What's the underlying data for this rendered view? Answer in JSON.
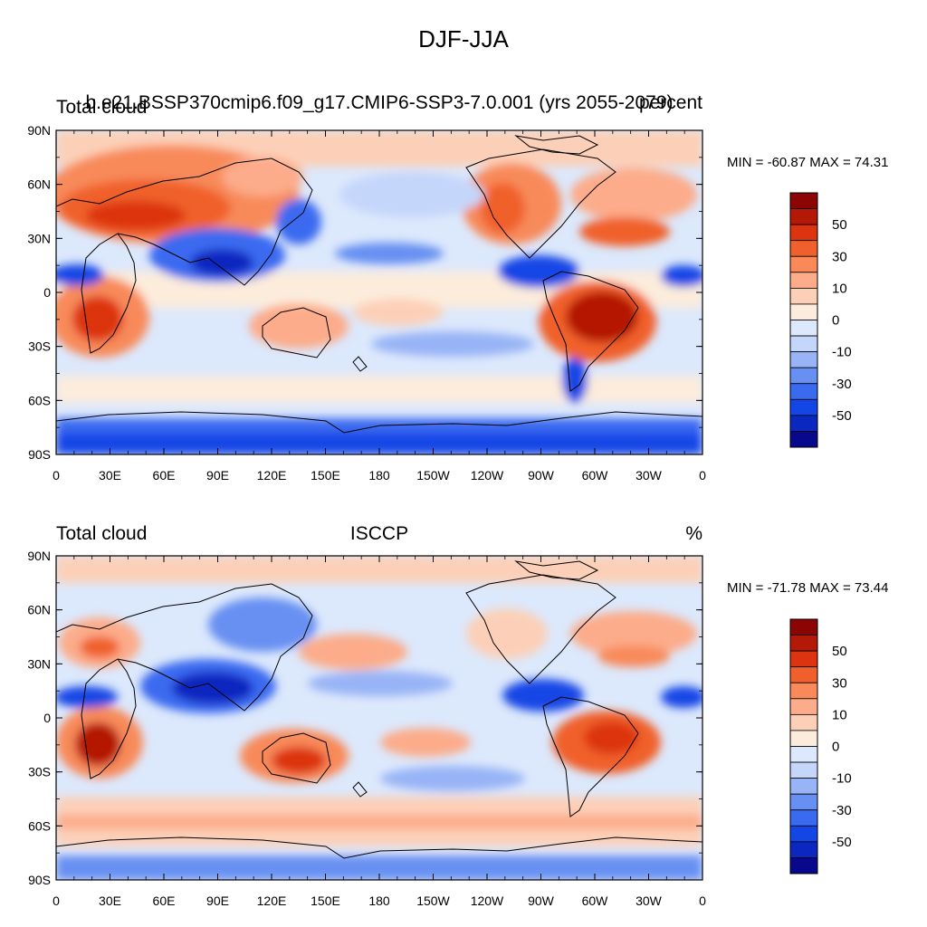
{
  "title": "DJF-JJA",
  "palette": [
    "#08088c",
    "#0a28c0",
    "#1446e6",
    "#3a6af0",
    "#6890f2",
    "#98b4f6",
    "#c4d6fa",
    "#dce8fc",
    "#fcecdc",
    "#fcd0b8",
    "#fcac8a",
    "#f88a5a",
    "#f0602c",
    "#dc3410",
    "#b41806",
    "#8c0404"
  ],
  "colorbar_labels": [
    "50",
    "30",
    "10",
    "0",
    "-10",
    "-30",
    "-50"
  ],
  "lat_labels": [
    "90N",
    "60N",
    "30N",
    "0",
    "30S",
    "60S",
    "90S"
  ],
  "lon_labels": [
    "0",
    "30E",
    "60E",
    "90E",
    "120E",
    "150E",
    "180",
    "150W",
    "120W",
    "90W",
    "60W",
    "30W",
    "0"
  ],
  "panels": [
    {
      "left_title": "Total cloud",
      "center_title": "b.e21.BSSP370cmip6.f09_g17.CMIP6-SSP3-7.0.001 (yrs 2055-2079)",
      "right_title": "percent",
      "minmax": "MIN = -60.87 MAX =  74.31"
    },
    {
      "left_title": "Total cloud",
      "center_title": "ISCCP",
      "right_title": "%",
      "minmax": "MIN = -71.78 MAX =  73.44"
    }
  ]
}
